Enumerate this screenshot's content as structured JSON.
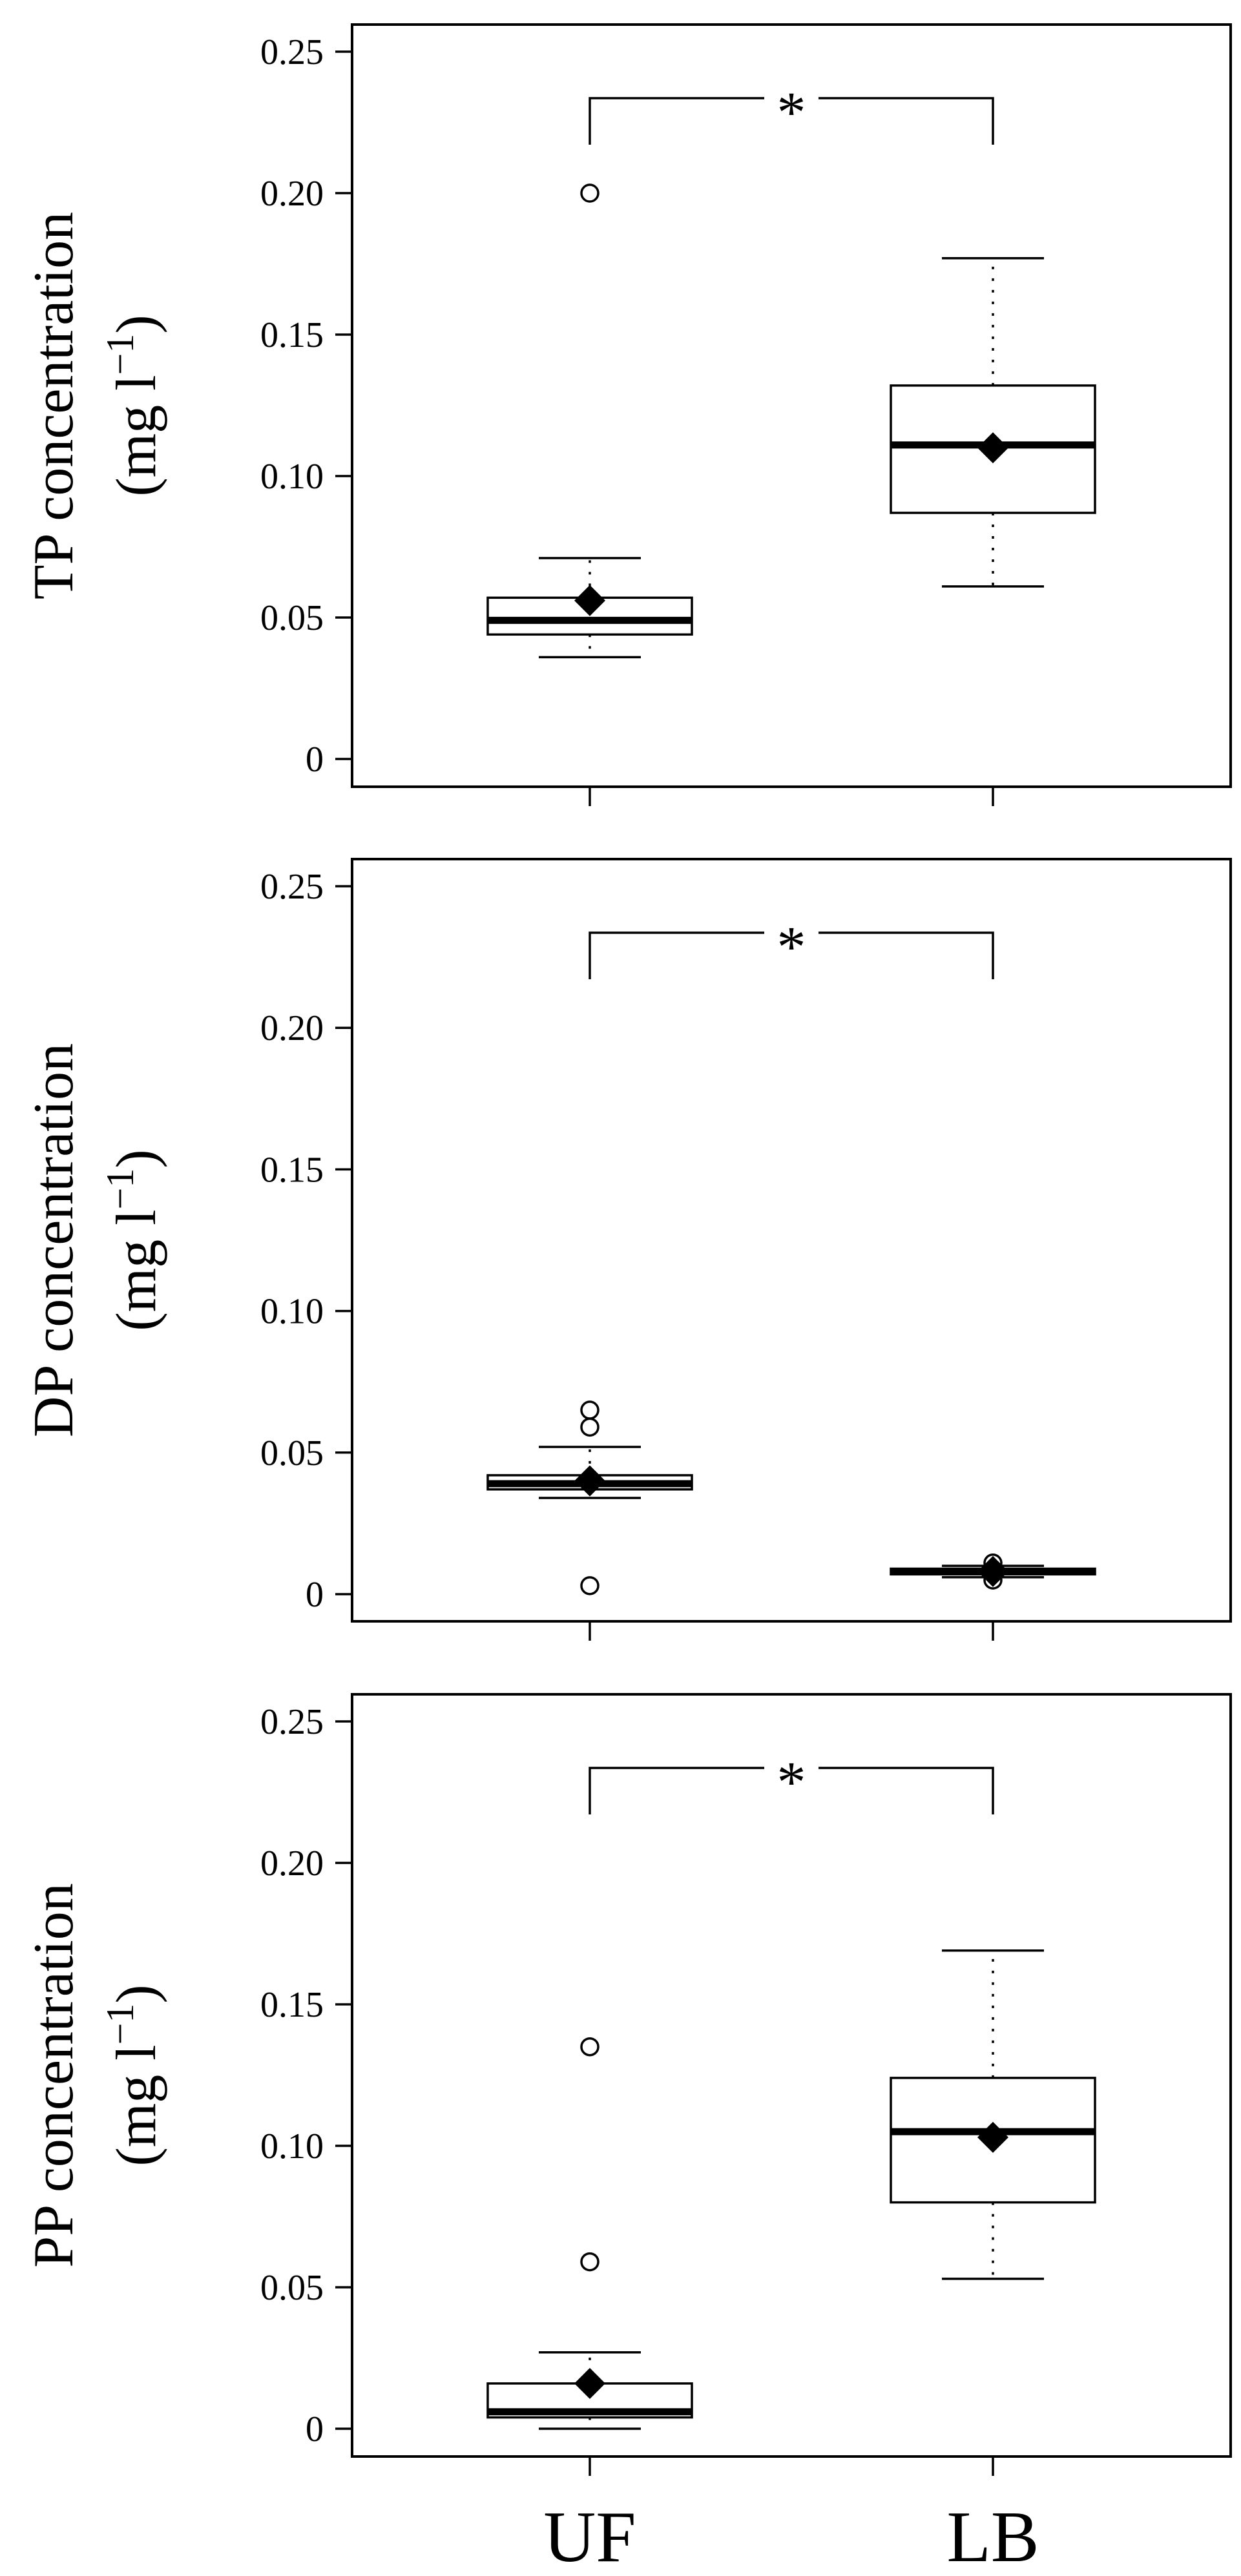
{
  "chart_data": [
    {
      "type": "box",
      "ylabel_line1": "TP concentration",
      "ylabel_line2": "(mg l",
      "ylabel_sup": "−1",
      "ylabel_close": ")",
      "ylim": [
        0,
        0.25
      ],
      "yticks": [
        0,
        0.05,
        0.1,
        0.15,
        0.2,
        0.25
      ],
      "ytick_labels": [
        "0",
        "0.05",
        "0.10",
        "0.15",
        "0.20",
        "0.25"
      ],
      "categories": [
        "UF",
        "LB"
      ],
      "significance": "*",
      "boxes": [
        {
          "category": "UF",
          "whisker_low": 0.036,
          "q1": 0.044,
          "median": 0.049,
          "q3": 0.057,
          "whisker_high": 0.071,
          "mean": 0.056,
          "outliers": [
            0.2
          ]
        },
        {
          "category": "LB",
          "whisker_low": 0.061,
          "q1": 0.087,
          "median": 0.111,
          "q3": 0.132,
          "whisker_high": 0.177,
          "mean": 0.11,
          "outliers": []
        }
      ]
    },
    {
      "type": "box",
      "ylabel_line1": "DP concentration",
      "ylabel_line2": "(mg l",
      "ylabel_sup": "−1",
      "ylabel_close": ")",
      "ylim": [
        0,
        0.25
      ],
      "yticks": [
        0,
        0.05,
        0.1,
        0.15,
        0.2,
        0.25
      ],
      "ytick_labels": [
        "0",
        "0.05",
        "0.10",
        "0.15",
        "0.20",
        "0.25"
      ],
      "categories": [
        "UF",
        "LB"
      ],
      "significance": "*",
      "boxes": [
        {
          "category": "UF",
          "whisker_low": 0.034,
          "q1": 0.037,
          "median": 0.039,
          "q3": 0.042,
          "whisker_high": 0.052,
          "mean": 0.04,
          "outliers": [
            0.065,
            0.059,
            0.003
          ]
        },
        {
          "category": "LB",
          "whisker_low": 0.006,
          "q1": 0.007,
          "median": 0.008,
          "q3": 0.009,
          "whisker_high": 0.01,
          "mean": 0.008,
          "outliers": [
            0.011,
            0.005
          ]
        }
      ]
    },
    {
      "type": "box",
      "ylabel_line1": "PP concentration",
      "ylabel_line2": "(mg l",
      "ylabel_sup": "−1",
      "ylabel_close": ")",
      "ylim": [
        0,
        0.25
      ],
      "yticks": [
        0,
        0.05,
        0.1,
        0.15,
        0.2,
        0.25
      ],
      "ytick_labels": [
        "0",
        "0.05",
        "0.10",
        "0.15",
        "0.20",
        "0.25"
      ],
      "categories": [
        "UF",
        "LB"
      ],
      "xtick_labels": [
        "UF",
        "LB"
      ],
      "significance": "*",
      "boxes": [
        {
          "category": "UF",
          "whisker_low": 0.0,
          "q1": 0.004,
          "median": 0.006,
          "q3": 0.016,
          "whisker_high": 0.027,
          "mean": 0.016,
          "outliers": [
            0.135,
            0.059
          ]
        },
        {
          "category": "LB",
          "whisker_low": 0.053,
          "q1": 0.08,
          "median": 0.105,
          "q3": 0.124,
          "whisker_high": 0.169,
          "mean": 0.103,
          "outliers": []
        }
      ]
    }
  ]
}
